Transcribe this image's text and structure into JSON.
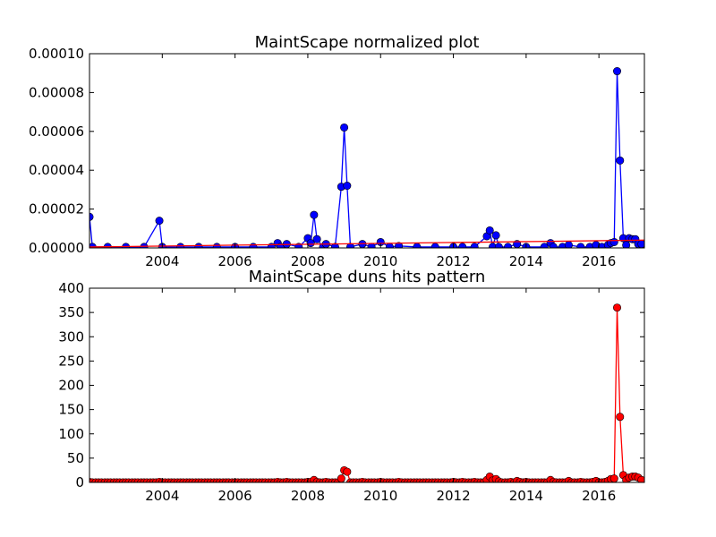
{
  "chart_data": [
    {
      "type": "line",
      "title": "MaintScape normalized plot",
      "xlabel": "",
      "ylabel": "",
      "xlim": [
        2002.0,
        2017.25
      ],
      "ylim": [
        0,
        0.0001
      ],
      "x_ticks": [
        2004,
        2006,
        2008,
        2010,
        2012,
        2014,
        2016
      ],
      "x_tick_labels": [
        "2004",
        "2006",
        "2008",
        "2010",
        "2012",
        "2014",
        "2016"
      ],
      "y_ticks": [
        0,
        2e-05,
        4e-05,
        6e-05,
        8e-05,
        0.0001
      ],
      "y_tick_labels": [
        "0.00000",
        "0.00002",
        "0.00004",
        "0.00006",
        "0.00008",
        "0.00010"
      ],
      "grid": false,
      "series": [
        {
          "color": "#0000ff",
          "marker": "circle",
          "points": [
            [
              2002.0,
              1.6e-05
            ],
            [
              2002.08,
              5e-07
            ],
            [
              2002.5,
              5e-07
            ],
            [
              2003.0,
              5e-07
            ],
            [
              2003.5,
              5e-07
            ],
            [
              2003.92,
              1.4e-05
            ],
            [
              2004.0,
              5e-07
            ],
            [
              2004.5,
              5e-07
            ],
            [
              2005.0,
              5e-07
            ],
            [
              2005.5,
              5e-07
            ],
            [
              2006.0,
              5e-07
            ],
            [
              2006.5,
              5e-07
            ],
            [
              2007.0,
              5e-07
            ],
            [
              2007.17,
              2.5e-06
            ],
            [
              2007.25,
              5e-07
            ],
            [
              2007.42,
              2e-06
            ],
            [
              2007.75,
              5e-07
            ],
            [
              2008.0,
              5e-06
            ],
            [
              2008.08,
              2.5e-06
            ],
            [
              2008.17,
              1.7e-05
            ],
            [
              2008.25,
              4.5e-06
            ],
            [
              2008.42,
              5e-07
            ],
            [
              2008.5,
              2e-06
            ],
            [
              2008.75,
              5e-07
            ],
            [
              2008.92,
              3.15e-05
            ],
            [
              2009.0,
              6.2e-05
            ],
            [
              2009.08,
              3.2e-05
            ],
            [
              2009.17,
              5e-07
            ],
            [
              2009.5,
              2e-06
            ],
            [
              2009.75,
              5e-07
            ],
            [
              2010.0,
              3e-06
            ],
            [
              2010.25,
              5e-07
            ],
            [
              2010.5,
              1e-06
            ],
            [
              2011.0,
              5e-07
            ],
            [
              2011.5,
              5e-07
            ],
            [
              2012.0,
              5e-07
            ],
            [
              2012.25,
              5e-07
            ],
            [
              2012.58,
              5e-07
            ],
            [
              2012.92,
              6e-06
            ],
            [
              2013.0,
              9e-06
            ],
            [
              2013.08,
              5e-07
            ],
            [
              2013.17,
              6.5e-06
            ],
            [
              2013.25,
              5e-07
            ],
            [
              2013.5,
              5e-07
            ],
            [
              2013.75,
              2e-06
            ],
            [
              2014.0,
              5e-07
            ],
            [
              2014.5,
              5e-07
            ],
            [
              2014.67,
              2.5e-06
            ],
            [
              2014.75,
              5e-07
            ],
            [
              2015.0,
              5e-07
            ],
            [
              2015.17,
              1.5e-06
            ],
            [
              2015.5,
              5e-07
            ],
            [
              2015.75,
              5e-07
            ],
            [
              2015.92,
              1.5e-06
            ],
            [
              2016.08,
              5e-07
            ],
            [
              2016.25,
              1.5e-06
            ],
            [
              2016.33,
              2.5e-06
            ],
            [
              2016.42,
              3e-06
            ],
            [
              2016.5,
              9.1e-05
            ],
            [
              2016.58,
              4.5e-05
            ],
            [
              2016.67,
              5e-06
            ],
            [
              2016.75,
              1.5e-06
            ],
            [
              2016.83,
              5e-06
            ],
            [
              2016.92,
              4.5e-06
            ],
            [
              2017.0,
              4.5e-06
            ],
            [
              2017.08,
              2e-06
            ],
            [
              2017.17,
              2e-06
            ]
          ]
        },
        {
          "color": "#ff0000",
          "marker": "none",
          "points": [
            [
              2002.0,
              5e-07
            ],
            [
              2017.25,
              4e-06
            ]
          ]
        }
      ]
    },
    {
      "type": "line",
      "title": "MaintScape duns hits pattern",
      "xlabel": "",
      "ylabel": "",
      "xlim": [
        2002.0,
        2017.25
      ],
      "ylim": [
        0,
        400
      ],
      "x_ticks": [
        2004,
        2006,
        2008,
        2010,
        2012,
        2014,
        2016
      ],
      "x_tick_labels": [
        "2004",
        "2006",
        "2008",
        "2010",
        "2012",
        "2014",
        "2016"
      ],
      "y_ticks": [
        0,
        50,
        100,
        150,
        200,
        250,
        300,
        350,
        400
      ],
      "y_tick_labels": [
        "0",
        "50",
        "100",
        "150",
        "200",
        "250",
        "300",
        "350",
        "400"
      ],
      "grid": false,
      "series": [
        {
          "color": "#ff0000",
          "marker": "circle",
          "points": [
            [
              2002.0,
              1
            ],
            [
              2002.08,
              0
            ],
            [
              2002.17,
              0
            ],
            [
              2002.25,
              0
            ],
            [
              2002.33,
              0
            ],
            [
              2002.42,
              0
            ],
            [
              2002.5,
              0
            ],
            [
              2002.58,
              0
            ],
            [
              2002.67,
              0
            ],
            [
              2002.75,
              0
            ],
            [
              2002.83,
              0
            ],
            [
              2002.92,
              0
            ],
            [
              2003.0,
              0
            ],
            [
              2003.08,
              0
            ],
            [
              2003.17,
              0
            ],
            [
              2003.25,
              0
            ],
            [
              2003.33,
              0
            ],
            [
              2003.42,
              0
            ],
            [
              2003.5,
              0
            ],
            [
              2003.58,
              0
            ],
            [
              2003.67,
              0
            ],
            [
              2003.75,
              0
            ],
            [
              2003.83,
              0
            ],
            [
              2003.92,
              1
            ],
            [
              2004.0,
              0
            ],
            [
              2004.08,
              0
            ],
            [
              2004.17,
              0
            ],
            [
              2004.25,
              0
            ],
            [
              2004.33,
              0
            ],
            [
              2004.42,
              0
            ],
            [
              2004.5,
              0
            ],
            [
              2004.58,
              0
            ],
            [
              2004.67,
              0
            ],
            [
              2004.75,
              0
            ],
            [
              2004.83,
              0
            ],
            [
              2004.92,
              0
            ],
            [
              2005.0,
              0
            ],
            [
              2005.08,
              0
            ],
            [
              2005.17,
              0
            ],
            [
              2005.25,
              0
            ],
            [
              2005.33,
              0
            ],
            [
              2005.42,
              0
            ],
            [
              2005.5,
              0
            ],
            [
              2005.58,
              0
            ],
            [
              2005.67,
              0
            ],
            [
              2005.75,
              0
            ],
            [
              2005.83,
              0
            ],
            [
              2005.92,
              0
            ],
            [
              2006.0,
              0
            ],
            [
              2006.08,
              0
            ],
            [
              2006.17,
              0
            ],
            [
              2006.25,
              0
            ],
            [
              2006.33,
              0
            ],
            [
              2006.42,
              0
            ],
            [
              2006.5,
              0
            ],
            [
              2006.58,
              0
            ],
            [
              2006.67,
              0
            ],
            [
              2006.75,
              0
            ],
            [
              2006.83,
              0
            ],
            [
              2006.92,
              0
            ],
            [
              2007.0,
              0
            ],
            [
              2007.08,
              0
            ],
            [
              2007.17,
              1
            ],
            [
              2007.25,
              0
            ],
            [
              2007.33,
              0
            ],
            [
              2007.42,
              1
            ],
            [
              2007.5,
              0
            ],
            [
              2007.58,
              0
            ],
            [
              2007.67,
              0
            ],
            [
              2007.75,
              0
            ],
            [
              2007.83,
              0
            ],
            [
              2007.92,
              0
            ],
            [
              2008.0,
              1
            ],
            [
              2008.08,
              1
            ],
            [
              2008.17,
              5
            ],
            [
              2008.25,
              1
            ],
            [
              2008.33,
              0
            ],
            [
              2008.42,
              0
            ],
            [
              2008.5,
              1
            ],
            [
              2008.58,
              0
            ],
            [
              2008.67,
              0
            ],
            [
              2008.75,
              0
            ],
            [
              2008.83,
              0
            ],
            [
              2008.92,
              8
            ],
            [
              2009.0,
              25
            ],
            [
              2009.08,
              22
            ],
            [
              2009.17,
              0
            ],
            [
              2009.25,
              0
            ],
            [
              2009.33,
              0
            ],
            [
              2009.42,
              0
            ],
            [
              2009.5,
              1
            ],
            [
              2009.58,
              0
            ],
            [
              2009.67,
              0
            ],
            [
              2009.75,
              0
            ],
            [
              2009.83,
              0
            ],
            [
              2009.92,
              0
            ],
            [
              2010.0,
              1
            ],
            [
              2010.08,
              0
            ],
            [
              2010.17,
              0
            ],
            [
              2010.25,
              0
            ],
            [
              2010.33,
              0
            ],
            [
              2010.42,
              0
            ],
            [
              2010.5,
              1
            ],
            [
              2010.58,
              0
            ],
            [
              2010.67,
              0
            ],
            [
              2010.75,
              0
            ],
            [
              2010.83,
              0
            ],
            [
              2010.92,
              0
            ],
            [
              2011.0,
              0
            ],
            [
              2011.08,
              0
            ],
            [
              2011.17,
              0
            ],
            [
              2011.25,
              0
            ],
            [
              2011.33,
              0
            ],
            [
              2011.42,
              0
            ],
            [
              2011.5,
              0
            ],
            [
              2011.58,
              0
            ],
            [
              2011.67,
              0
            ],
            [
              2011.75,
              0
            ],
            [
              2011.83,
              0
            ],
            [
              2011.92,
              0
            ],
            [
              2012.0,
              1
            ],
            [
              2012.08,
              0
            ],
            [
              2012.17,
              0
            ],
            [
              2012.25,
              1
            ],
            [
              2012.33,
              0
            ],
            [
              2012.42,
              0
            ],
            [
              2012.5,
              0
            ],
            [
              2012.58,
              1
            ],
            [
              2012.67,
              0
            ],
            [
              2012.75,
              0
            ],
            [
              2012.83,
              0
            ],
            [
              2012.92,
              5
            ],
            [
              2013.0,
              12
            ],
            [
              2013.08,
              4
            ],
            [
              2013.17,
              7
            ],
            [
              2013.25,
              2
            ],
            [
              2013.33,
              0
            ],
            [
              2013.42,
              0
            ],
            [
              2013.5,
              0
            ],
            [
              2013.58,
              1
            ],
            [
              2013.67,
              0
            ],
            [
              2013.75,
              3
            ],
            [
              2013.83,
              1
            ],
            [
              2013.92,
              0
            ],
            [
              2014.0,
              1
            ],
            [
              2014.08,
              0
            ],
            [
              2014.17,
              0
            ],
            [
              2014.25,
              0
            ],
            [
              2014.33,
              0
            ],
            [
              2014.42,
              0
            ],
            [
              2014.5,
              0
            ],
            [
              2014.58,
              0
            ],
            [
              2014.67,
              5
            ],
            [
              2014.75,
              1
            ],
            [
              2014.83,
              0
            ],
            [
              2014.92,
              0
            ],
            [
              2015.0,
              0
            ],
            [
              2015.08,
              0
            ],
            [
              2015.17,
              3
            ],
            [
              2015.25,
              0
            ],
            [
              2015.33,
              0
            ],
            [
              2015.42,
              0
            ],
            [
              2015.5,
              1
            ],
            [
              2015.58,
              0
            ],
            [
              2015.67,
              0
            ],
            [
              2015.75,
              0
            ],
            [
              2015.83,
              1
            ],
            [
              2015.92,
              3
            ],
            [
              2016.0,
              0
            ],
            [
              2016.08,
              0
            ],
            [
              2016.17,
              1
            ],
            [
              2016.25,
              3
            ],
            [
              2016.33,
              7
            ],
            [
              2016.42,
              8
            ],
            [
              2016.5,
              360
            ],
            [
              2016.58,
              135
            ],
            [
              2016.67,
              15
            ],
            [
              2016.75,
              5
            ],
            [
              2016.83,
              10
            ],
            [
              2016.92,
              12
            ],
            [
              2017.0,
              12
            ],
            [
              2017.08,
              10
            ],
            [
              2017.17,
              5
            ]
          ]
        }
      ]
    }
  ]
}
